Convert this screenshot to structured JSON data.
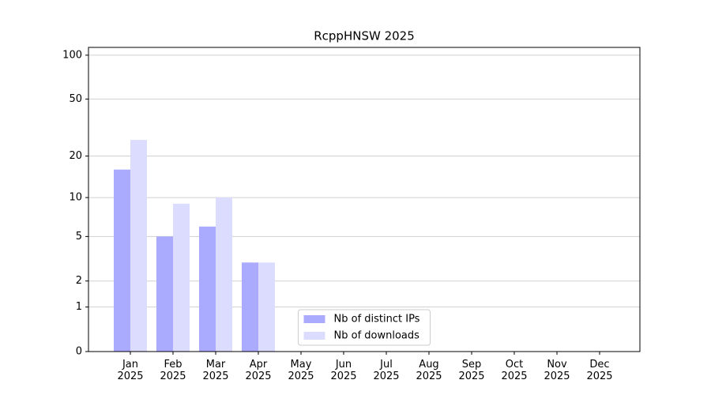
{
  "chart_data": {
    "type": "bar",
    "title": "RcppHNSW 2025",
    "categories": [
      "Jan\n2025",
      "Feb\n2025",
      "Mar\n2025",
      "Apr\n2025",
      "May\n2025",
      "Jun\n2025",
      "Jul\n2025",
      "Aug\n2025",
      "Sep\n2025",
      "Oct\n2025",
      "Nov\n2025",
      "Dec\n2025"
    ],
    "series": [
      {
        "name": "Nb of distinct IPs",
        "color": "#aaaaff",
        "values": [
          16,
          5,
          6,
          3,
          null,
          null,
          null,
          null,
          null,
          null,
          null,
          null
        ]
      },
      {
        "name": "Nb of downloads",
        "color": "#dcdcff",
        "values": [
          26,
          9,
          10,
          3,
          null,
          null,
          null,
          null,
          null,
          null,
          null,
          null
        ]
      }
    ],
    "yscale": "log1p",
    "ylim": [
      0,
      113
    ],
    "yticks": [
      0,
      1,
      2,
      5,
      10,
      20,
      50,
      100
    ],
    "grid": true,
    "legend": "lower center"
  }
}
